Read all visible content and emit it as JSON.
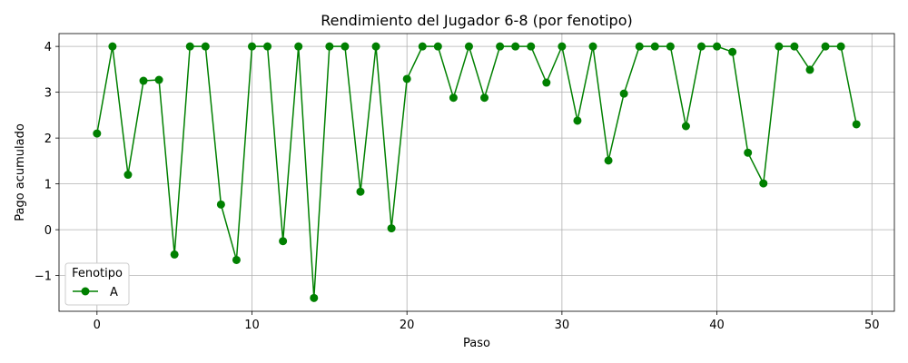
{
  "chart_data": {
    "type": "line",
    "title": "Rendimiento del Jugador 6-8 (por fenotipo)",
    "xlabel": "Paso",
    "ylabel": "Pago acumulado",
    "xlim": [
      -2.45,
      51.45
    ],
    "ylim": [
      -1.78,
      4.28
    ],
    "xticks": [
      0,
      10,
      20,
      30,
      40,
      50
    ],
    "yticks": [
      -1,
      0,
      1,
      2,
      3,
      4
    ],
    "xtick_labels": [
      "0",
      "10",
      "20",
      "30",
      "40",
      "50"
    ],
    "ytick_labels": [
      "−1",
      "0",
      "1",
      "2",
      "3",
      "4"
    ],
    "grid": true,
    "legend": {
      "title": "Fenotipo",
      "position": "lower-left"
    },
    "x": [
      0,
      1,
      2,
      3,
      4,
      5,
      6,
      7,
      8,
      9,
      10,
      11,
      12,
      13,
      14,
      15,
      16,
      17,
      18,
      19,
      20,
      21,
      22,
      23,
      24,
      25,
      26,
      27,
      28,
      29,
      30,
      31,
      32,
      33,
      34,
      35,
      36,
      37,
      38,
      39,
      40,
      41,
      42,
      43,
      44,
      45,
      46,
      47,
      48,
      49
    ],
    "series": [
      {
        "name": "A",
        "color": "#008000",
        "marker": "circle",
        "values": [
          2.1,
          4.0,
          1.2,
          3.25,
          3.27,
          -0.54,
          4.0,
          4.0,
          0.55,
          -0.66,
          4.0,
          4.0,
          -0.25,
          4.0,
          -1.49,
          4.0,
          4.0,
          0.83,
          4.0,
          0.03,
          3.29,
          4.0,
          4.0,
          2.88,
          4.0,
          2.88,
          4.0,
          4.0,
          4.0,
          3.21,
          4.0,
          2.38,
          4.0,
          1.51,
          2.97,
          4.0,
          4.0,
          4.0,
          2.26,
          4.0,
          4.0,
          3.88,
          1.68,
          1.01,
          4.0,
          4.0,
          3.49,
          4.0,
          4.0,
          2.3
        ]
      }
    ]
  }
}
